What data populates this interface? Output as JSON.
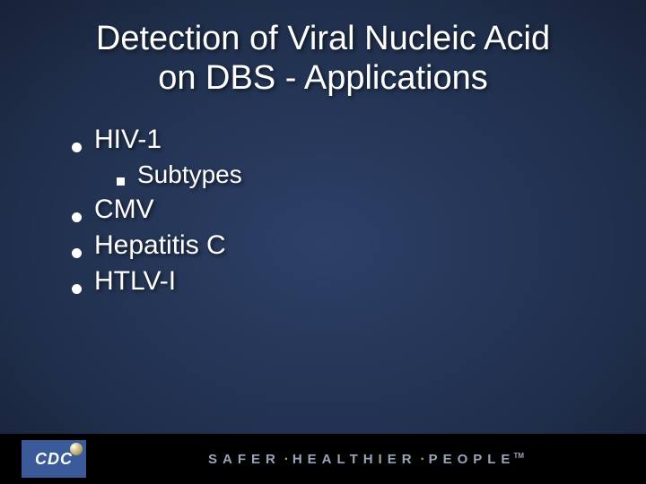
{
  "colors": {
    "background_center": "#2d4068",
    "background_edge": "#182238",
    "text": "#ffffff",
    "footer_bg": "#000000",
    "logo_bg": "#3a5a9a",
    "tagline_text": "#9aa4b8",
    "tagline_sep": "#c4a85a"
  },
  "title": {
    "line1": "Detection of Viral Nucleic Acid",
    "line2": "on DBS - Applications",
    "fontsize": 38
  },
  "bullets": [
    {
      "level": 1,
      "text": "HIV-1"
    },
    {
      "level": 2,
      "text": "Subtypes"
    },
    {
      "level": 1,
      "text": "CMV"
    },
    {
      "level": 1,
      "text": "Hepatitis C"
    },
    {
      "level": 1,
      "text": "HTLV-I"
    }
  ],
  "footer": {
    "logo_text": "CDC",
    "tagline_parts": [
      "SAFER",
      "HEALTHIER",
      "PEOPLE"
    ],
    "tagline_sep": "·",
    "tm": "TM"
  }
}
